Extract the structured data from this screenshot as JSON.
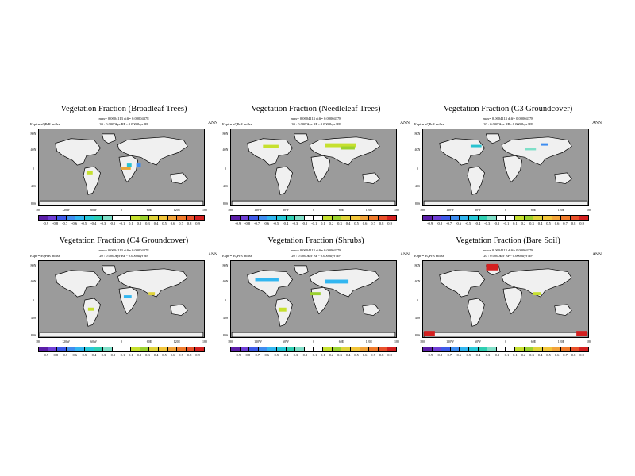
{
  "figure": {
    "panels": [
      {
        "title": "Vegetation Fraction (Broadleaf Trees)",
        "info": "max= 0.0604113 diff= 0.00004378",
        "expt": "Expt = xQPrB mdlsn",
        "bp": "20 : 0.0000kyr BP - 0.0000kyr BP",
        "season": "ANN"
      },
      {
        "title": "Vegetation Fraction (Needleleaf Trees)",
        "info": "max= 0.0604113 diff= 0.00004378",
        "expt": "Expt = xQPrB mdlsn",
        "bp": "20 : 0.0000kyr BP - 0.0000kyr BP",
        "season": "ANN"
      },
      {
        "title": "Vegetation Fraction (C3 Groundcover)",
        "info": "max= 0.0604113 diff= 0.00004378",
        "expt": "Expt = xQPrB mdlsn",
        "bp": "20 : 0.0000kyr BP - 0.0000kyr BP",
        "season": "ANN"
      },
      {
        "title": "Vegetation Fraction (C4 Groundcover)",
        "info": "max= 0.0604113 diff= 0.00004378",
        "expt": "Expt = xQPrB mdlsn",
        "bp": "20 : 0.0000kyr BP - 0.0000kyr BP",
        "season": "ANN"
      },
      {
        "title": "Vegetation Fraction (Shrubs)",
        "info": "max= 0.0604113 diff= 0.00004378",
        "expt": "Expt = xQPrB mdlsn",
        "bp": "20 : 0.0000kyr BP - 0.0000kyr BP",
        "season": "ANN"
      },
      {
        "title": "Vegetation Fraction (Bare Soil)",
        "info": "max= 0.0604113 diff= 0.00004378",
        "expt": "Expt = xQPrB mdlsn",
        "bp": "20 : 0.0000kyr BP - 0.0000kyr BP",
        "season": "ANN"
      }
    ],
    "lat_ticks": [
      "80N",
      "40N",
      "0",
      "40S",
      "80S"
    ],
    "lon_ticks": [
      "180",
      "120W",
      "60W",
      "0",
      "60E",
      "120E",
      "180"
    ],
    "colorbar_labels": [
      "-0.9",
      "-0.8",
      "-0.7",
      "-0.6",
      "-0.5",
      "-0.4",
      "-0.3",
      "-0.2",
      "-0.1",
      "0.1",
      "0.2",
      "0.3",
      "0.4",
      "0.5",
      "0.6",
      "0.7",
      "0.8",
      "0.9"
    ],
    "colorbar_colors": [
      "#5b1ea8",
      "#6f3fd6",
      "#3e5ae8",
      "#3f8df0",
      "#32b6f0",
      "#27c8d8",
      "#2fcfb2",
      "#7fdfc8",
      "#ffffff",
      "#ffffff",
      "#c6e02f",
      "#9bd12f",
      "#e0d33a",
      "#f2c53a",
      "#f2a33a",
      "#f07b2c",
      "#e9512a",
      "#d42020"
    ]
  }
}
